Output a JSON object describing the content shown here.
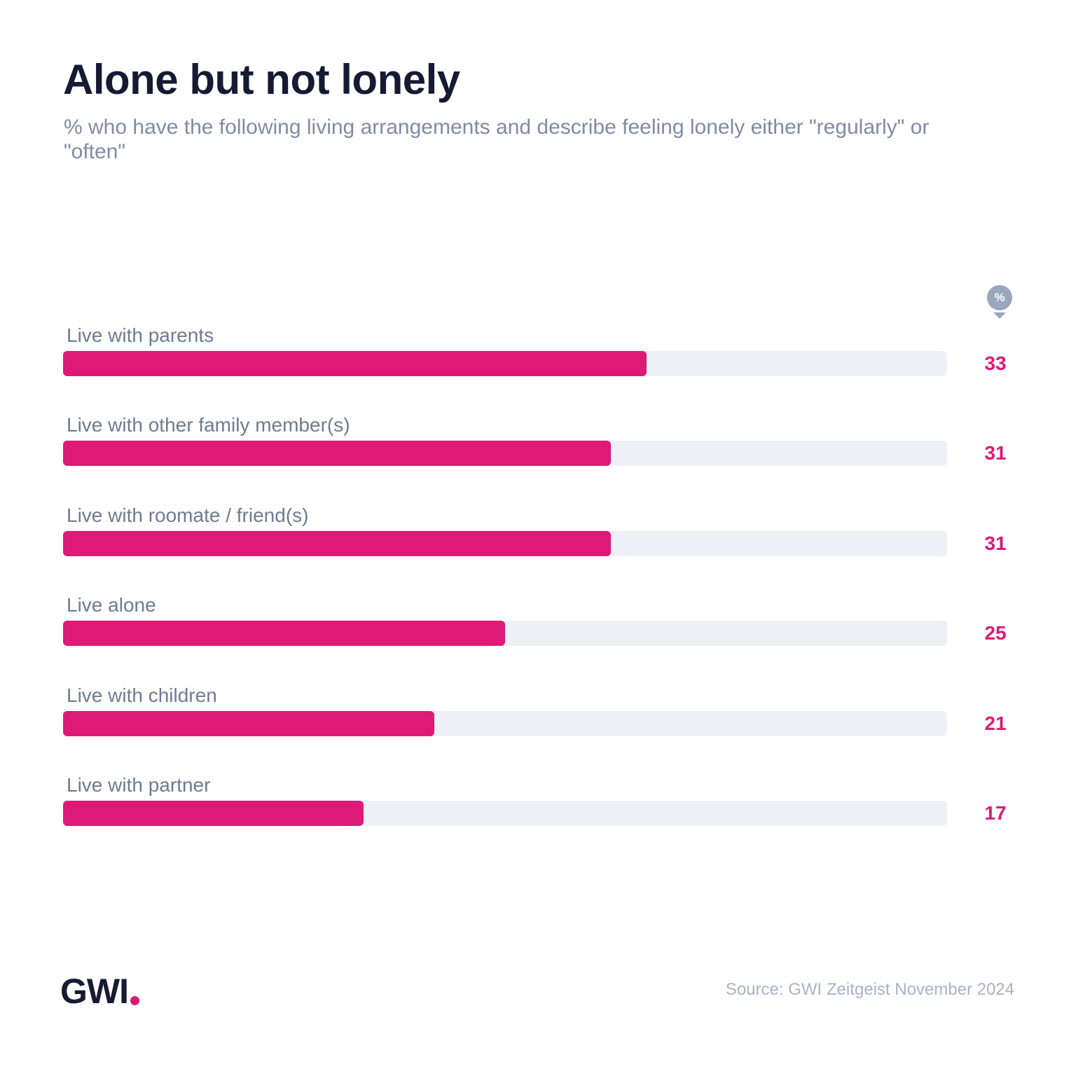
{
  "title": "Alone but not lonely",
  "subtitle": "% who have the following living arrangements and describe feeling lonely either \"regularly\" or \"often\"",
  "unit_marker": "%",
  "source": "Source: GWI Zeitgeist November 2024",
  "logo_text": "GWI",
  "colors": {
    "bar": "#dd1a78",
    "track": "#eef0f5",
    "title": "#161a33",
    "subtitle": "#7f8ba3",
    "source": "#a9b2c5"
  },
  "chart_data": {
    "type": "bar",
    "orientation": "horizontal",
    "title": "Alone but not lonely",
    "subtitle": "% who have the following living arrangements and describe feeling lonely either \"regularly\" or \"often\"",
    "categories": [
      "Live with parents",
      "Live with other family member(s)",
      "Live with roomate / friend(s)",
      "Live alone",
      "Live with children",
      "Live with partner"
    ],
    "values": [
      33,
      31,
      31,
      25,
      21,
      17
    ],
    "xlim": [
      0,
      50
    ],
    "grid": false,
    "legend": "none"
  }
}
